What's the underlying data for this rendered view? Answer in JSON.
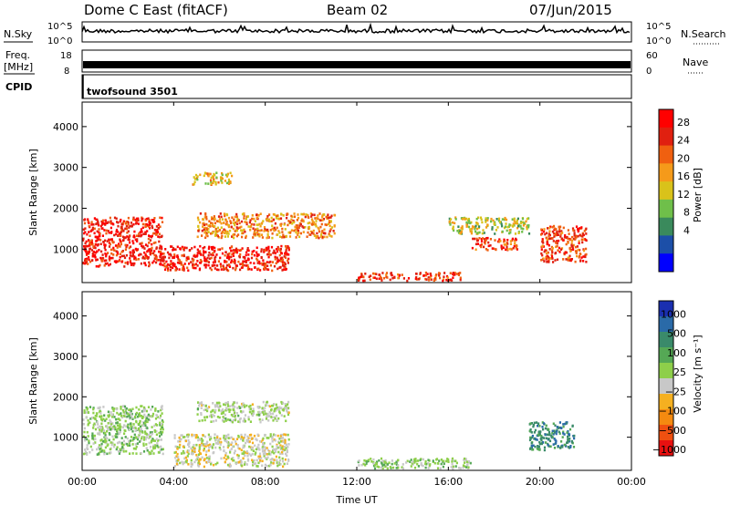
{
  "header": {
    "radar": "Dome C East (fitACF)",
    "beam": "Beam 02",
    "date": "07/Jun/2015"
  },
  "sky_panel": {
    "left_label": "N.Sky",
    "right_label": "N.Search",
    "left_ticks": [
      "10^5",
      "10^0"
    ],
    "right_ticks": [
      "10^5",
      "10^0"
    ]
  },
  "freq_panel": {
    "left_label_1": "Freq.",
    "left_label_2": "[MHz]",
    "right_label": "Nave",
    "left_ticks": [
      "18",
      "8"
    ],
    "right_ticks": [
      "60",
      "0"
    ]
  },
  "cpid_panel": {
    "label": "CPID",
    "value": "twofsound 3501"
  },
  "time_axis": {
    "ticks": [
      "00:00",
      "04:00",
      "08:00",
      "12:00",
      "16:00",
      "20:00",
      "00:00"
    ],
    "xlabel": "Time UT"
  },
  "power_panel": {
    "ylabel": "Slant Range [km]",
    "yticks": [
      "4000",
      "3000",
      "2000",
      "1000"
    ],
    "colorbar_label": "Power [dB]",
    "colorbar_ticks": [
      "28",
      "24",
      "20",
      "16",
      "12",
      "8",
      "4"
    ],
    "colors": [
      "#0000ff",
      "#1c4fa8",
      "#3a8a5c",
      "#6fbf4a",
      "#d9c21a",
      "#f59a1a",
      "#f06010",
      "#e02010",
      "#ff0000"
    ]
  },
  "velocity_panel": {
    "ylabel": "Slant Range [km]",
    "yticks": [
      "4000",
      "3000",
      "2000",
      "1000"
    ],
    "colorbar_label": "Velocity [m s⁻¹]",
    "colorbar_ticks": [
      "1000",
      "500",
      "100",
      "25",
      "−25",
      "−100",
      "−500",
      "−1000"
    ],
    "colors": [
      "#1a2fb0",
      "#2a6aa8",
      "#3a8a6a",
      "#55a855",
      "#8ecf4a",
      "#c8c8c8",
      "#f5b020",
      "#f58a10",
      "#f05010",
      "#e81010"
    ]
  },
  "chart_data": [
    {
      "type": "heatmap",
      "title": "Power",
      "x": [
        "00:00",
        "04:00",
        "08:00",
        "12:00",
        "16:00",
        "20:00",
        "00:00"
      ],
      "xlabel": "Time UT",
      "ylabel": "Slant Range [km]",
      "ylim": [
        180,
        4600
      ],
      "colorbar": {
        "label": "Power [dB]",
        "range": [
          0,
          30
        ],
        "ticks": [
          4,
          8,
          12,
          16,
          20,
          24,
          28
        ]
      },
      "regions": [
        {
          "t": [
            0,
            3.5
          ],
          "r": [
            600,
            1800
          ],
          "value": 26
        },
        {
          "t": [
            3.5,
            9
          ],
          "r": [
            500,
            1100
          ],
          "value": 26
        },
        {
          "t": [
            5,
            11
          ],
          "r": [
            1300,
            1900
          ],
          "value": 20
        },
        {
          "t": [
            4.8,
            6.5
          ],
          "r": [
            2600,
            2900
          ],
          "value": 16
        },
        {
          "t": [
            12,
            16.5
          ],
          "r": [
            250,
            450
          ],
          "value": 24
        },
        {
          "t": [
            16,
            19.5
          ],
          "r": [
            1400,
            1800
          ],
          "value": 14
        },
        {
          "t": [
            17,
            19
          ],
          "r": [
            1000,
            1300
          ],
          "value": 24
        },
        {
          "t": [
            20,
            22
          ],
          "r": [
            700,
            1600
          ],
          "value": 24
        }
      ]
    },
    {
      "type": "heatmap",
      "title": "Velocity",
      "x": [
        "00:00",
        "04:00",
        "08:00",
        "12:00",
        "16:00",
        "20:00",
        "00:00"
      ],
      "xlabel": "Time UT",
      "ylabel": "Slant Range [km]",
      "ylim": [
        180,
        4600
      ],
      "colorbar": {
        "label": "Velocity [m s⁻¹]",
        "range": [
          -1000,
          1000
        ],
        "ticks": [
          1000,
          500,
          100,
          25,
          -25,
          -100,
          -500,
          -1000
        ]
      },
      "regions": [
        {
          "t": [
            0,
            3.5
          ],
          "r": [
            600,
            1800
          ],
          "value": 100
        },
        {
          "t": [
            4,
            9
          ],
          "r": [
            300,
            1100
          ],
          "value": -100
        },
        {
          "t": [
            5,
            9
          ],
          "r": [
            1400,
            1900
          ],
          "value": 0
        },
        {
          "t": [
            12,
            17
          ],
          "r": [
            250,
            500
          ],
          "value": 100
        },
        {
          "t": [
            19.5,
            21.5
          ],
          "r": [
            700,
            1400
          ],
          "value": 500
        }
      ]
    }
  ]
}
